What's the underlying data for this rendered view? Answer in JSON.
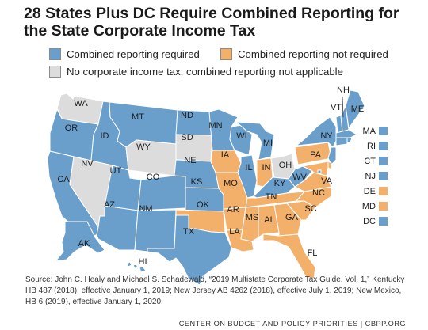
{
  "title": "28 States Plus DC Require Combined Reporting for the State Corporate Income Tax",
  "legend": [
    {
      "key": "required",
      "label": "Combined reporting required",
      "color": "#6a9fcc"
    },
    {
      "key": "not_required",
      "label": "Combined reporting not required",
      "color": "#f2b06a"
    },
    {
      "key": "none",
      "label": "No corporate income tax; combined reporting not applicable",
      "color": "#dcdcdc"
    }
  ],
  "states": [
    {
      "abbr": "WA",
      "category": "none"
    },
    {
      "abbr": "OR",
      "category": "required"
    },
    {
      "abbr": "CA",
      "category": "required"
    },
    {
      "abbr": "NV",
      "category": "none"
    },
    {
      "abbr": "ID",
      "category": "required"
    },
    {
      "abbr": "MT",
      "category": "required"
    },
    {
      "abbr": "WY",
      "category": "none"
    },
    {
      "abbr": "UT",
      "category": "required"
    },
    {
      "abbr": "AZ",
      "category": "required"
    },
    {
      "abbr": "CO",
      "category": "required"
    },
    {
      "abbr": "NM",
      "category": "required"
    },
    {
      "abbr": "ND",
      "category": "required"
    },
    {
      "abbr": "SD",
      "category": "none"
    },
    {
      "abbr": "NE",
      "category": "required"
    },
    {
      "abbr": "KS",
      "category": "required"
    },
    {
      "abbr": "OK",
      "category": "not_required"
    },
    {
      "abbr": "TX",
      "category": "required"
    },
    {
      "abbr": "MN",
      "category": "required"
    },
    {
      "abbr": "IA",
      "category": "not_required"
    },
    {
      "abbr": "MO",
      "category": "not_required"
    },
    {
      "abbr": "AR",
      "category": "not_required"
    },
    {
      "abbr": "LA",
      "category": "not_required"
    },
    {
      "abbr": "WI",
      "category": "required"
    },
    {
      "abbr": "IL",
      "category": "required"
    },
    {
      "abbr": "MI",
      "category": "required"
    },
    {
      "abbr": "IN",
      "category": "not_required"
    },
    {
      "abbr": "OH",
      "category": "none"
    },
    {
      "abbr": "KY",
      "category": "required"
    },
    {
      "abbr": "TN",
      "category": "not_required"
    },
    {
      "abbr": "MS",
      "category": "not_required"
    },
    {
      "abbr": "AL",
      "category": "not_required"
    },
    {
      "abbr": "GA",
      "category": "not_required"
    },
    {
      "abbr": "FL",
      "category": "not_required"
    },
    {
      "abbr": "SC",
      "category": "not_required"
    },
    {
      "abbr": "NC",
      "category": "not_required"
    },
    {
      "abbr": "VA",
      "category": "not_required"
    },
    {
      "abbr": "WV",
      "category": "required"
    },
    {
      "abbr": "PA",
      "category": "not_required"
    },
    {
      "abbr": "NY",
      "category": "required"
    },
    {
      "abbr": "VT",
      "category": "required"
    },
    {
      "abbr": "NH",
      "category": "required"
    },
    {
      "abbr": "ME",
      "category": "required"
    },
    {
      "abbr": "MA",
      "category": "required"
    },
    {
      "abbr": "RI",
      "category": "required"
    },
    {
      "abbr": "CT",
      "category": "required"
    },
    {
      "abbr": "NJ",
      "category": "required"
    },
    {
      "abbr": "DE",
      "category": "not_required"
    },
    {
      "abbr": "MD",
      "category": "not_required"
    },
    {
      "abbr": "DC",
      "category": "required"
    },
    {
      "abbr": "AK",
      "category": "required"
    },
    {
      "abbr": "HI",
      "category": "required"
    }
  ],
  "source": "Source: John C. Healy and Michael S. Schadewald, “2019 Multistate Corporate Tax Guide, Vol. 1,” Kentucky HB 487 (2018), effective January 1, 2019; New Jersey AB 4262 (2018), effective July 1, 2019; New Mexico, HB 6 (2019), effective January 1, 2020.",
  "footer": "CENTER ON BUDGET AND POLICY PRIORITIES | CBPP.ORG"
}
